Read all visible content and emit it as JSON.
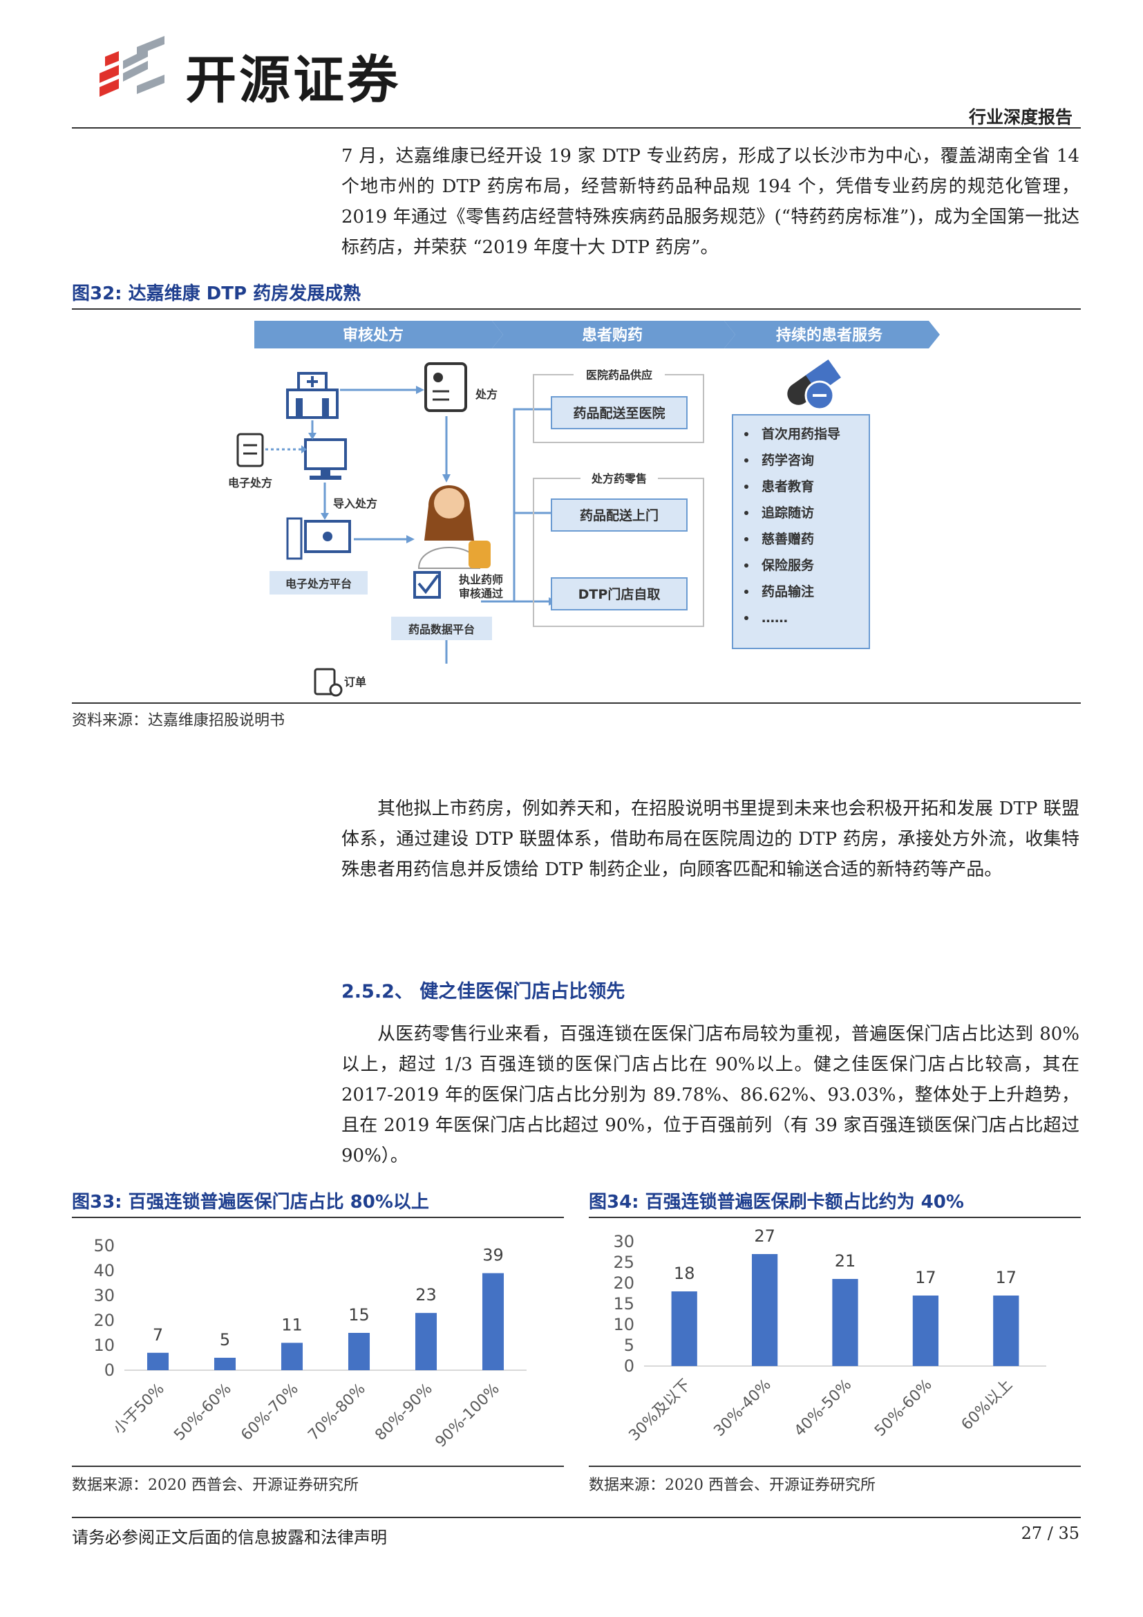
{
  "header": {
    "brand": "开源证券",
    "report_type": "行业深度报告"
  },
  "para1": "7 月，达嘉维康已经开设 19 家 DTP 专业药房，形成了以长沙市为中心，覆盖湖南全省 14 个地市州的 DTP 药房布局，经营新特药品种品规 194 个，凭借专业药房的规范化管理，2019 年通过《零售药店经营特殊疾病药品服务规范》(“特药药房标准”)，成为全国第一批达标药店，并荣获 “2019 年度十大 DTP 药房”。",
  "fig32": {
    "title": "图32:  达嘉维康 DTP 药房发展成熟",
    "source": "资料来源：达嘉维康招股说明书",
    "stages": [
      "审核处方",
      "患者购药",
      "持续的患者服务"
    ],
    "labels": {
      "prescription": "处方",
      "e_prescription": "电子处方",
      "import_prescription": "导入处方",
      "platform": "电子处方平台",
      "pharmacist": "执业药师",
      "pharmacist2": "审核通过",
      "drug_platform": "药品数据平台",
      "order": "订单",
      "hospital_supply": "医院药品供应",
      "to_hospital": "药品配送至医院",
      "rx_retail": "处方药零售",
      "to_door": "药品配送上门",
      "pickup": "DTP门店自取"
    },
    "services": [
      "首次用药指导",
      "药学咨询",
      "患者教育",
      "追踪随访",
      "慈善赠药",
      "保险服务",
      "药品输注",
      "……"
    ]
  },
  "para2": "其他拟上市药房，例如养天和，在招股说明书里提到未来也会积极开拓和发展 DTP 联盟体系，通过建设 DTP 联盟体系，借助布局在医院周边的 DTP 药房，承接处方外流，收集特殊患者用药信息并反馈给 DTP 制药企业，向顾客匹配和输送合适的新特药等产品。",
  "section": {
    "title": "2.5.2、 健之佳医保门店占比领先"
  },
  "para3": "从医药零售行业来看，百强连锁在医保门店布局较为重视，普遍医保门店占比达到 80%以上，超过 1/3 百强连锁的医保门店占比在 90%以上。健之佳医保门店占比较高，其在 2017-2019 年的医保门店占比分别为 89.78%、86.62%、93.03%，整体处于上升趋势，且在 2019 年医保门店占比超过 90%，位于百强前列（有 39 家百强连锁医保门店占比超过 90%）。",
  "fig33": {
    "title": "图33:  百强连锁普遍医保门店占比 80%以上",
    "source": "数据来源：2020 西普会、开源证券研究所"
  },
  "fig34": {
    "title": "图34:  百强连锁普遍医保刷卡额占比约为 40%",
    "source": "数据来源：2020 西普会、开源证券研究所"
  },
  "chart_data": [
    {
      "type": "bar",
      "categories": [
        "小于50%",
        "50%-60%",
        "60%-70%",
        "70%-80%",
        "80%-90%",
        "90%-100%"
      ],
      "values": [
        7,
        5,
        11,
        15,
        23,
        39
      ],
      "ylim": [
        0,
        50
      ],
      "yticks": [
        0,
        10,
        20,
        30,
        40,
        50
      ],
      "color": "#4472c4"
    },
    {
      "type": "bar",
      "categories": [
        "30%及以下",
        "30%-40%",
        "40%-50%",
        "50%-60%",
        "60%以上"
      ],
      "values": [
        18,
        27,
        21,
        17,
        17
      ],
      "ylim": [
        0,
        30
      ],
      "yticks": [
        0,
        5,
        10,
        15,
        20,
        25,
        30
      ],
      "color": "#4472c4"
    }
  ],
  "footer": {
    "disclaimer": "请务必参阅正文后面的信息披露和法律声明",
    "page": "27 / 35"
  }
}
